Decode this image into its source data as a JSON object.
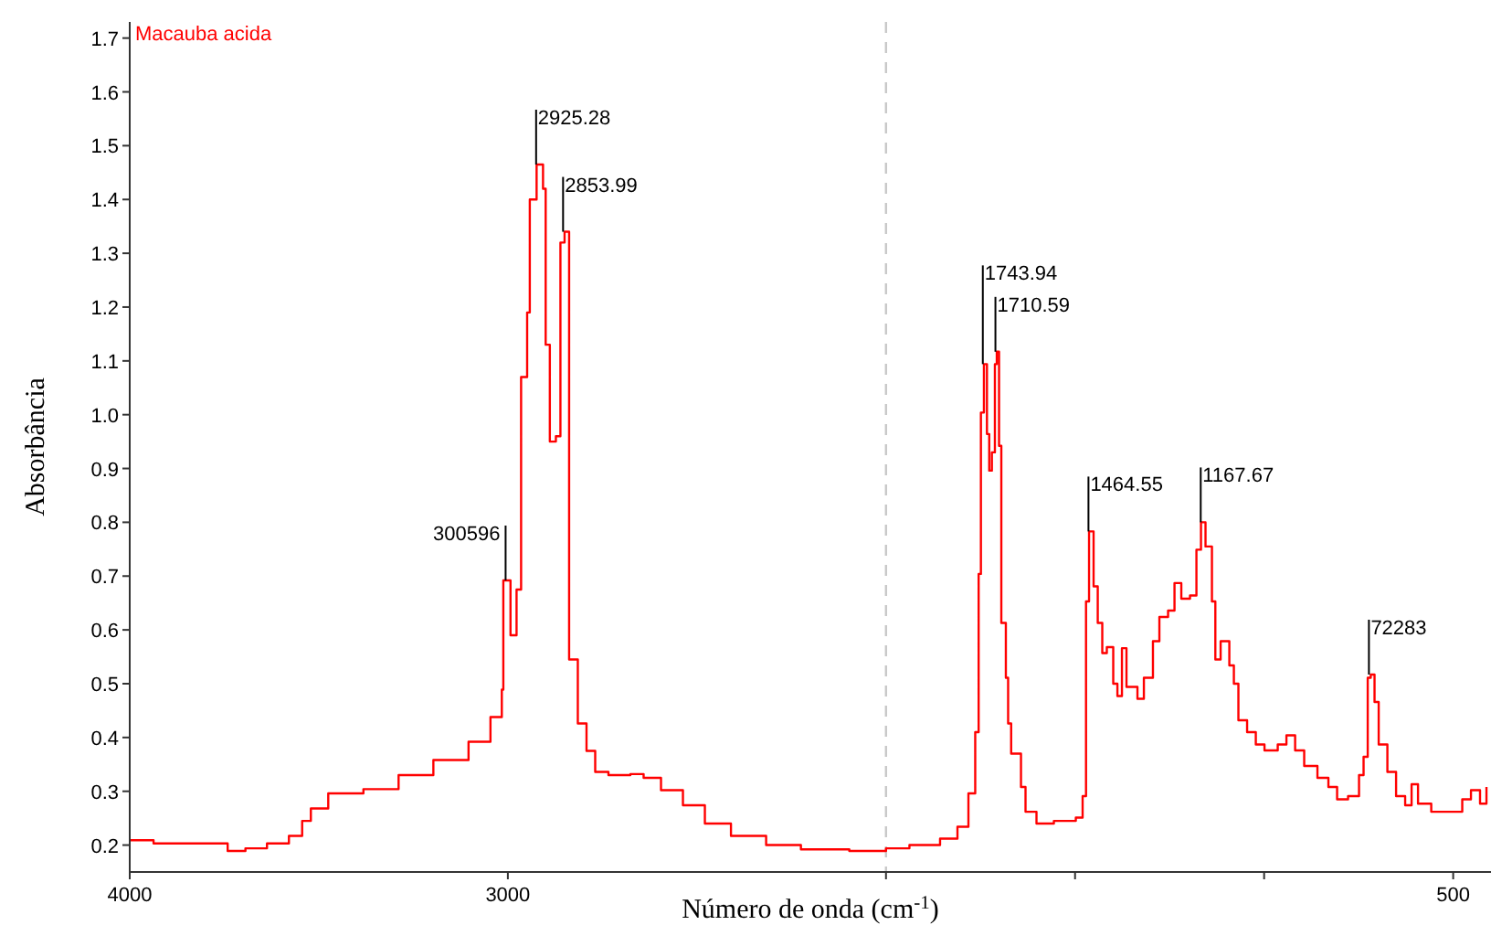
{
  "chart_data": {
    "type": "step",
    "title": "Macauba acida",
    "xlabel": "Número de onda (cm$^{-1}$)",
    "ylabel": "Absorbância",
    "xlim": [
      4000,
      400
    ],
    "ylim": [
      0.15,
      1.73
    ],
    "xticks": [
      4000,
      3000,
      {
        "value": 2000,
        "label": null
      },
      {
        "value": 1500,
        "label": null
      },
      {
        "value": 1000,
        "label": null
      },
      500
    ],
    "yticks": [
      0.2,
      0.3,
      0.4,
      0.5,
      0.6,
      0.7,
      0.8,
      0.9,
      {
        "value": 1,
        "label": "1.0"
      },
      1.1,
      1.2,
      1.3,
      1.4,
      1.5,
      1.6,
      1.7
    ],
    "grid": false,
    "marker": "none",
    "line_style": "solid",
    "ref_lines": [
      {
        "axis": "x",
        "value": 2000,
        "color": "#c8c8c8",
        "line_style": "dashed"
      }
    ],
    "series": [
      {
        "color": "#ff0000",
        "x": [
          4000,
          3937,
          3764,
          3741,
          3694,
          3637,
          3579,
          3544,
          3521,
          3475,
          3382,
          3289,
          3197,
          3104,
          3046,
          3016,
          3012,
          2993,
          2977,
          2965,
          2949,
          2942,
          2924,
          2907,
          2900,
          2889,
          2873,
          2861,
          2850,
          2838,
          2815,
          2792,
          2769,
          2734,
          2676,
          2641,
          2595,
          2537,
          2479,
          2410,
          2317,
          2225,
          2097,
          2000,
          1938,
          1857,
          1811,
          1782,
          1764,
          1755,
          1749,
          1741,
          1733,
          1727,
          1720,
          1712,
          1707,
          1701,
          1695,
          1683,
          1677,
          1669,
          1652,
          1643,
          1631,
          1602,
          1556,
          1498,
          1480,
          1471,
          1463,
          1451,
          1440,
          1428,
          1416,
          1399,
          1388,
          1376,
          1364,
          1335,
          1318,
          1294,
          1277,
          1254,
          1237,
          1219,
          1196,
          1179,
          1167,
          1155,
          1138,
          1129,
          1115,
          1092,
          1080,
          1068,
          1045,
          1022,
          999,
          964,
          941,
          918,
          894,
          859,
          830,
          807,
          778,
          749,
          737,
          726,
          718,
          708,
          697,
          674,
          651,
          627,
          610,
          593,
          558,
          523,
          476,
          453,
          429,
          412
        ],
        "values": [
          0.209,
          0.203,
          0.203,
          0.189,
          0.194,
          0.203,
          0.217,
          0.245,
          0.268,
          0.296,
          0.304,
          0.33,
          0.358,
          0.392,
          0.438,
          0.489,
          0.692,
          0.59,
          0.675,
          1.07,
          1.19,
          1.4,
          1.465,
          1.42,
          1.13,
          0.95,
          0.96,
          1.32,
          1.34,
          0.545,
          0.426,
          0.375,
          0.336,
          0.33,
          0.332,
          0.325,
          0.302,
          0.274,
          0.24,
          0.217,
          0.2,
          0.192,
          0.189,
          0.194,
          0.2,
          0.212,
          0.234,
          0.296,
          0.41,
          0.704,
          1.004,
          1.094,
          0.964,
          0.896,
          0.93,
          1.094,
          1.117,
          0.942,
          0.613,
          0.511,
          0.426,
          0.37,
          0.37,
          0.308,
          0.262,
          0.24,
          0.245,
          0.251,
          0.291,
          0.653,
          0.783,
          0.681,
          0.613,
          0.557,
          0.568,
          0.5,
          0.477,
          0.566,
          0.494,
          0.472,
          0.511,
          0.579,
          0.624,
          0.636,
          0.687,
          0.658,
          0.664,
          0.749,
          0.8,
          0.755,
          0.653,
          0.545,
          0.579,
          0.534,
          0.5,
          0.432,
          0.41,
          0.387,
          0.376,
          0.387,
          0.404,
          0.376,
          0.347,
          0.325,
          0.308,
          0.285,
          0.291,
          0.33,
          0.364,
          0.511,
          0.517,
          0.466,
          0.387,
          0.336,
          0.291,
          0.274,
          0.313,
          0.277,
          0.262,
          0.262,
          0.285,
          0.302,
          0.277,
          0.308
        ]
      }
    ],
    "annotations": [
      {
        "text": "2925.28",
        "x": 2925.28,
        "y": 1.465
      },
      {
        "text": "2853.99",
        "x": 2853.99,
        "y": 1.34
      },
      {
        "text": "300596",
        "x": 3005.96,
        "y": 0.692
      },
      {
        "text": "1743.94",
        "x": 1743.94,
        "y": 1.094
      },
      {
        "text": "1710.59",
        "x": 1710.59,
        "y": 1.117
      },
      {
        "text": "1464.55",
        "x": 1464.55,
        "y": 0.783
      },
      {
        "text": "1167.67",
        "x": 1167.67,
        "y": 0.8
      },
      {
        "text": "72283",
        "x": 722.83,
        "y": 0.517
      }
    ]
  }
}
